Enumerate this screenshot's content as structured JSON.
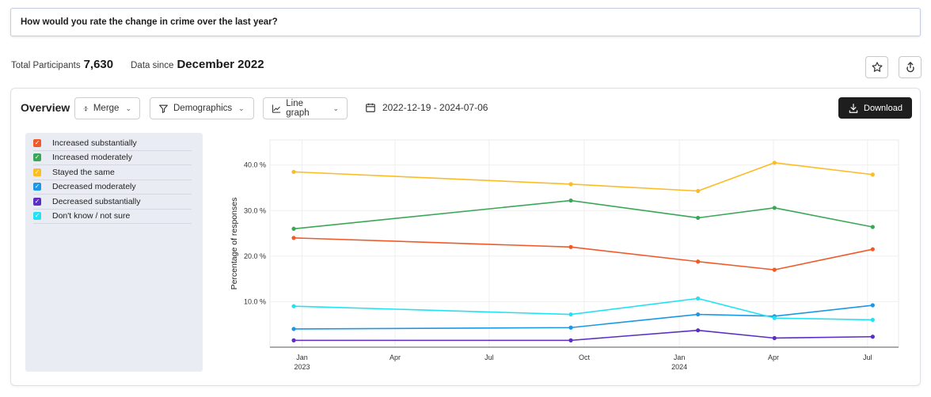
{
  "question": "How would you rate the change in crime over the last year?",
  "stats": {
    "total_label": "Total Participants",
    "total_value": "7,630",
    "since_label": "Data since",
    "since_value": "December 2022"
  },
  "toolbar": {
    "title": "Overview",
    "merge_label": "Merge",
    "demographics_label": "Demographics",
    "graph_label": "Line graph",
    "date_range": "2022-12-19 - 2024-07-06",
    "download_label": "Download"
  },
  "icons": {
    "favorite": "star-icon",
    "share": "share-icon",
    "merge": "merge-icon",
    "filter": "filter-icon",
    "line": "line-chart-icon",
    "calendar": "calendar-icon",
    "download": "download-icon"
  },
  "legend": [
    {
      "label": "Increased substantially",
      "color": "#f05a28"
    },
    {
      "label": "Increased moderately",
      "color": "#3aa757"
    },
    {
      "label": "Stayed the same",
      "color": "#fbbc25"
    },
    {
      "label": "Decreased moderately",
      "color": "#1a98e6"
    },
    {
      "label": "Decreased substantially",
      "color": "#5b2ec5"
    },
    {
      "label": "Don't know / not sure",
      "color": "#21e2f2"
    }
  ],
  "chart_data": {
    "type": "line",
    "ylabel": "Percentage of responses",
    "xlabel": "",
    "y_ticks": [
      "10.0 %",
      "20.0 %",
      "30.0 %",
      "40.0 %"
    ],
    "ylim": [
      0,
      45.5
    ],
    "x_range": [
      "2022-12-01",
      "2024-07-31"
    ],
    "x_ticks": [
      {
        "date": "2023-01-01",
        "label": "Jan",
        "sub": "2023"
      },
      {
        "date": "2023-04-01",
        "label": "Apr",
        "sub": ""
      },
      {
        "date": "2023-07-01",
        "label": "Jul",
        "sub": ""
      },
      {
        "date": "2023-10-01",
        "label": "Oct",
        "sub": ""
      },
      {
        "date": "2024-01-01",
        "label": "Jan",
        "sub": "2024"
      },
      {
        "date": "2024-04-01",
        "label": "Apr",
        "sub": ""
      },
      {
        "date": "2024-07-01",
        "label": "Jul",
        "sub": ""
      }
    ],
    "x": [
      "2022-12-24",
      "2023-09-18",
      "2024-01-19",
      "2024-04-02",
      "2024-07-06"
    ],
    "grid": true,
    "series": [
      {
        "name": "Increased substantially",
        "color": "#f05a28",
        "values": [
          24.0,
          22.0,
          18.8,
          17.0,
          21.5
        ]
      },
      {
        "name": "Increased moderately",
        "color": "#3aa757",
        "values": [
          26.0,
          32.2,
          28.4,
          30.6,
          26.4
        ]
      },
      {
        "name": "Stayed the same",
        "color": "#fbbc25",
        "values": [
          38.5,
          35.8,
          34.3,
          40.5,
          37.9
        ]
      },
      {
        "name": "Decreased moderately",
        "color": "#1a98e6",
        "values": [
          4.0,
          4.3,
          7.2,
          6.8,
          9.2
        ]
      },
      {
        "name": "Decreased substantially",
        "color": "#5b2ec5",
        "values": [
          1.5,
          1.5,
          3.7,
          2.0,
          2.3
        ]
      },
      {
        "name": "Don't know / not sure",
        "color": "#21e2f2",
        "values": [
          9.0,
          7.2,
          10.7,
          6.4,
          6.0
        ]
      }
    ]
  }
}
